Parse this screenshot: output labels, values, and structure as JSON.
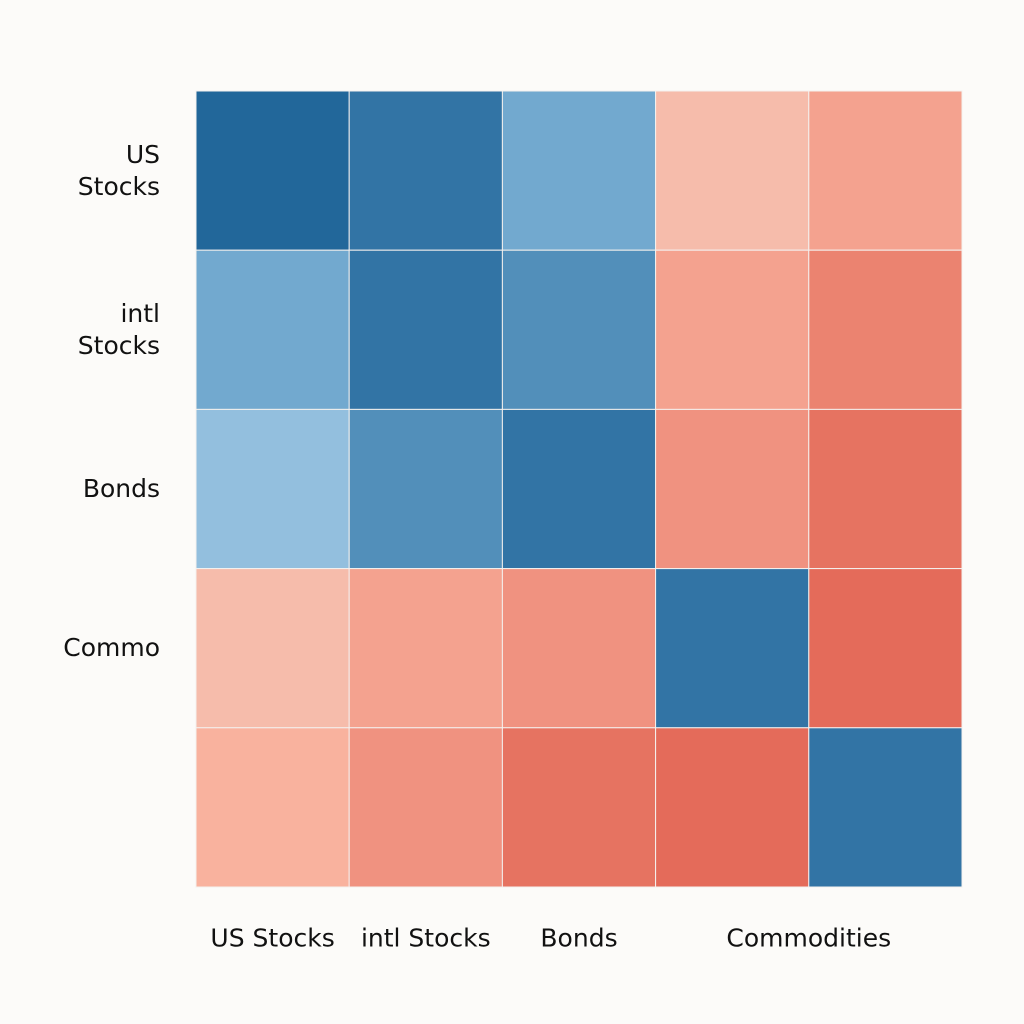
{
  "chart_data": {
    "type": "heatmap",
    "x_categories": [
      "US Stocks",
      "intl Stocks",
      "Bonds",
      null,
      "Commodities"
    ],
    "y_categories": [
      "US Stocks",
      "intl Stocks",
      "Bonds",
      "Commo",
      null
    ],
    "values": [
      [
        1,
        0.9,
        0.5,
        -0.3,
        -0.5
      ],
      [
        0.5,
        0.9,
        0.7,
        -0.5,
        -0.7
      ],
      [
        0.3,
        0.7,
        0.9,
        -0.6,
        -0.8
      ],
      [
        -0.3,
        -0.5,
        -0.6,
        0.9,
        -0.85
      ],
      [
        -0.4,
        -0.6,
        -0.8,
        -0.85,
        0.9
      ]
    ],
    "zlim": [
      -1,
      1
    ],
    "colormap": [
      "#dd5443",
      "#fcbca8",
      "#8dbfe1",
      "#22679a"
    ]
  }
}
